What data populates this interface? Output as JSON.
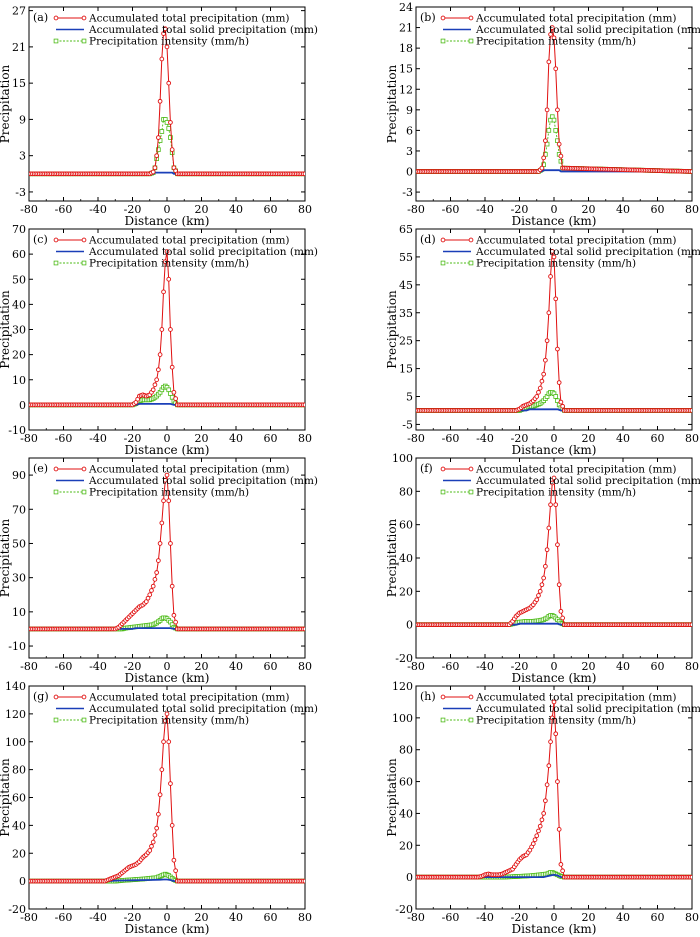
{
  "figure": {
    "xlabel": "Distance (km)",
    "ylabel": "Precipitation",
    "legend": {
      "total": "Accumulated total precipitation (mm)",
      "solid": "Accumulated total solid precipitation (mm)",
      "intensity": "Precipitation intensity (mm/h)"
    },
    "colors": {
      "total": "#e01010",
      "solid": "#1a3fb8",
      "intensity": "#4cbb17",
      "axis": "#000000"
    },
    "marker_icons": {
      "total": "circle-marker-icon",
      "solid": "line-only",
      "intensity": "square-marker-icon"
    }
  },
  "chart_data": [
    {
      "panel": "(a)",
      "type": "line",
      "xlim": [
        -80,
        80
      ],
      "xticks": [
        -80,
        -60,
        -40,
        -20,
        0,
        20,
        40,
        60,
        80
      ],
      "ylim": [
        -4.5,
        27.6
      ],
      "yticks": [
        -3,
        3,
        9,
        15,
        21,
        27
      ],
      "series": [
        {
          "name": "Accumulated total precipitation (mm)",
          "x": [
            -80,
            -10,
            -8,
            -7,
            -6,
            -5,
            -4,
            -3,
            -2,
            -1,
            0,
            1,
            2,
            3,
            4,
            6,
            80
          ],
          "values": [
            0,
            0,
            0.3,
            1,
            3,
            6,
            12,
            19,
            23.2,
            24,
            21,
            15,
            8.5,
            4,
            1,
            0,
            0
          ]
        },
        {
          "name": "Accumulated total solid precipitation (mm)",
          "x": [
            -80,
            -8,
            -7,
            3,
            4,
            80
          ],
          "values": [
            0,
            0,
            0.2,
            0.2,
            0,
            0
          ]
        },
        {
          "name": "Precipitation intensity (mm/h)",
          "x": [
            -80,
            -10,
            -8,
            -7,
            -6,
            -5,
            -4,
            -3,
            -2,
            -1,
            0,
            1,
            2,
            3,
            4,
            6,
            80
          ],
          "values": [
            0,
            0,
            0.2,
            1,
            2.5,
            4,
            5.5,
            7,
            9,
            9,
            8.5,
            7.5,
            6,
            3.5,
            1,
            0,
            0
          ]
        }
      ]
    },
    {
      "panel": "(b)",
      "type": "line",
      "xlim": [
        -80,
        80
      ],
      "xticks": [
        -80,
        -60,
        -40,
        -20,
        0,
        20,
        40,
        60,
        80
      ],
      "ylim": [
        -4.3,
        24
      ],
      "yticks": [
        -3,
        0,
        3,
        6,
        9,
        12,
        15,
        18,
        21,
        24
      ],
      "series": [
        {
          "name": "Accumulated total precipitation (mm)",
          "x": [
            -80,
            -9,
            -7,
            -6,
            -5,
            -4,
            -3,
            -2,
            -1,
            0,
            1,
            2,
            3,
            5,
            80
          ],
          "values": [
            0,
            0,
            0.5,
            2,
            4.5,
            9,
            16,
            20,
            21,
            19.5,
            15,
            9,
            4,
            0.5,
            0
          ]
        },
        {
          "name": "Accumulated total solid precipitation (mm)",
          "x": [
            -80,
            -7,
            -6,
            3,
            4,
            80
          ],
          "values": [
            0,
            0,
            0.2,
            0.2,
            0,
            0
          ]
        },
        {
          "name": "Precipitation intensity (mm/h)",
          "x": [
            -80,
            -9,
            -7,
            -6,
            -5,
            -4,
            -3,
            -2,
            -1,
            0,
            1,
            2,
            3,
            5,
            80
          ],
          "values": [
            0,
            0,
            0.3,
            1,
            2.5,
            4,
            6,
            7.5,
            8,
            7.5,
            6,
            4.5,
            2.5,
            0.5,
            0
          ]
        }
      ]
    },
    {
      "panel": "(c)",
      "type": "line",
      "xlim": [
        -80,
        80
      ],
      "xticks": [
        -80,
        -60,
        -40,
        -20,
        0,
        20,
        40,
        60,
        80
      ],
      "ylim": [
        -10,
        70
      ],
      "yticks": [
        -10,
        0,
        10,
        20,
        30,
        40,
        50,
        60,
        70
      ],
      "series": [
        {
          "name": "Accumulated total precipitation (mm)",
          "x": [
            -80,
            -20,
            -18,
            -16,
            -14,
            -12,
            -10,
            -8,
            -6,
            -5,
            -4,
            -3,
            -2,
            -1,
            0,
            1,
            2,
            3,
            4,
            6,
            80
          ],
          "values": [
            0,
            0,
            1,
            3.5,
            4,
            3.5,
            4,
            6,
            10,
            14,
            20,
            30,
            45,
            57,
            61,
            50,
            30,
            15,
            5,
            0,
            0
          ]
        },
        {
          "name": "Accumulated total solid precipitation (mm)",
          "x": [
            -80,
            -18,
            -16,
            2,
            4,
            80
          ],
          "values": [
            0,
            0,
            0.4,
            0.4,
            0,
            0
          ]
        },
        {
          "name": "Precipitation intensity (mm/h)",
          "x": [
            -80,
            -20,
            -18,
            -16,
            -14,
            -12,
            -10,
            -8,
            -6,
            -4,
            -3,
            -2,
            -1,
            0,
            1,
            2,
            3,
            4,
            6,
            80
          ],
          "values": [
            0,
            0,
            0.5,
            1.5,
            2,
            2,
            2,
            2.5,
            3.5,
            5,
            6,
            7,
            7.5,
            7,
            6,
            4.5,
            3,
            1.5,
            0,
            0
          ]
        }
      ]
    },
    {
      "panel": "(d)",
      "type": "line",
      "xlim": [
        -80,
        80
      ],
      "xticks": [
        -80,
        -60,
        -40,
        -20,
        0,
        20,
        40,
        60,
        80
      ],
      "ylim": [
        -7,
        65
      ],
      "yticks": [
        -5,
        5,
        15,
        25,
        35,
        45,
        55,
        65
      ],
      "series": [
        {
          "name": "Accumulated total precipitation (mm)",
          "x": [
            -80,
            -22,
            -20,
            -18,
            -16,
            -14,
            -12,
            -10,
            -8,
            -6,
            -5,
            -4,
            -3,
            -2,
            -1,
            0,
            1,
            2,
            3,
            4,
            6,
            80
          ],
          "values": [
            0,
            0,
            0.5,
            1.5,
            2,
            2.5,
            3.5,
            5,
            8,
            13,
            18,
            25,
            35,
            48,
            57,
            55,
            40,
            22,
            10,
            3,
            0,
            0
          ]
        },
        {
          "name": "Accumulated total solid precipitation (mm)",
          "x": [
            -80,
            -16,
            -14,
            2,
            4,
            80
          ],
          "values": [
            0,
            0,
            0.4,
            0.4,
            0,
            0
          ]
        },
        {
          "name": "Precipitation intensity (mm/h)",
          "x": [
            -80,
            -20,
            -18,
            -16,
            -14,
            -12,
            -10,
            -8,
            -6,
            -4,
            -3,
            -2,
            -1,
            0,
            1,
            2,
            3,
            4,
            6,
            80
          ],
          "values": [
            0,
            0,
            0.5,
            1,
            1.5,
            1.5,
            2,
            2.5,
            3.5,
            5,
            6,
            6.5,
            6.5,
            6,
            5,
            3.5,
            2,
            1,
            0,
            0
          ]
        }
      ]
    },
    {
      "panel": "(e)",
      "type": "line",
      "xlim": [
        -80,
        80
      ],
      "xticks": [
        -80,
        -60,
        -40,
        -20,
        0,
        20,
        40,
        60,
        80
      ],
      "ylim": [
        -17,
        100
      ],
      "yticks": [
        -10,
        10,
        30,
        50,
        70,
        90
      ],
      "series": [
        {
          "name": "Accumulated total precipitation (mm)",
          "x": [
            -80,
            -30,
            -28,
            -26,
            -24,
            -22,
            -20,
            -18,
            -16,
            -14,
            -12,
            -10,
            -8,
            -6,
            -5,
            -4,
            -3,
            -2,
            -1,
            0,
            1,
            2,
            3,
            4,
            6,
            80
          ],
          "values": [
            0,
            0,
            1,
            3,
            5,
            7,
            9,
            11,
            13,
            14,
            16,
            20,
            25,
            33,
            40,
            50,
            62,
            75,
            87,
            90,
            75,
            50,
            25,
            8,
            0,
            0
          ]
        },
        {
          "name": "Accumulated total solid precipitation (mm)",
          "x": [
            -80,
            -20,
            -18,
            2,
            4,
            80
          ],
          "values": [
            0,
            0,
            0.5,
            0.5,
            0,
            0
          ]
        },
        {
          "name": "Precipitation intensity (mm/h)",
          "x": [
            -80,
            -26,
            -24,
            -20,
            -16,
            -12,
            -8,
            -6,
            -4,
            -3,
            -2,
            -1,
            0,
            1,
            2,
            3,
            4,
            6,
            80
          ],
          "values": [
            0,
            0,
            0.5,
            1,
            1.5,
            2,
            2.5,
            3.5,
            5,
            6,
            6.5,
            6.5,
            6,
            5,
            4,
            2.5,
            1,
            0,
            0
          ]
        }
      ]
    },
    {
      "panel": "(f)",
      "type": "line",
      "xlim": [
        -80,
        80
      ],
      "xticks": [
        -80,
        -60,
        -40,
        -20,
        0,
        20,
        40,
        60,
        80
      ],
      "ylim": [
        -20,
        100
      ],
      "yticks": [
        -20,
        0,
        20,
        40,
        60,
        80,
        100
      ],
      "series": [
        {
          "name": "Accumulated total precipitation (mm)",
          "x": [
            -80,
            -26,
            -24,
            -22,
            -20,
            -18,
            -16,
            -14,
            -12,
            -10,
            -8,
            -6,
            -5,
            -4,
            -3,
            -2,
            -1,
            0,
            1,
            2,
            3,
            4,
            6,
            80
          ],
          "values": [
            0,
            0,
            2,
            5,
            7,
            8,
            9,
            10,
            12,
            15,
            20,
            28,
            35,
            45,
            58,
            72,
            85,
            88,
            72,
            48,
            24,
            8,
            0,
            0
          ]
        },
        {
          "name": "Accumulated total solid precipitation (mm)",
          "x": [
            -80,
            -22,
            -20,
            2,
            4,
            80
          ],
          "values": [
            0,
            0,
            0.6,
            0.6,
            0,
            0
          ]
        },
        {
          "name": "Precipitation intensity (mm/h)",
          "x": [
            -80,
            -26,
            -24,
            -20,
            -16,
            -12,
            -8,
            -6,
            -4,
            -3,
            -2,
            -1,
            0,
            1,
            2,
            3,
            4,
            6,
            80
          ],
          "values": [
            0,
            0,
            0.5,
            1.5,
            2,
            2,
            2.5,
            3,
            4,
            5,
            5.5,
            5.5,
            5,
            4,
            3,
            2,
            1,
            0,
            0
          ]
        }
      ]
    },
    {
      "panel": "(g)",
      "type": "line",
      "xlim": [
        -80,
        80
      ],
      "xticks": [
        -80,
        -60,
        -40,
        -20,
        0,
        20,
        40,
        60,
        80
      ],
      "ylim": [
        -20,
        140
      ],
      "yticks": [
        -20,
        0,
        20,
        40,
        60,
        80,
        100,
        120,
        140
      ],
      "series": [
        {
          "name": "Accumulated total precipitation (mm)",
          "x": [
            -80,
            -36,
            -34,
            -32,
            -30,
            -28,
            -26,
            -24,
            -22,
            -20,
            -18,
            -16,
            -14,
            -12,
            -10,
            -8,
            -6,
            -5,
            -4,
            -3,
            -2,
            -1,
            0,
            1,
            2,
            3,
            4,
            6,
            80
          ],
          "values": [
            0,
            0,
            1,
            2,
            3,
            4,
            6,
            8,
            10,
            11,
            12,
            14,
            17,
            19,
            22,
            28,
            38,
            48,
            62,
            80,
            100,
            115,
            120,
            100,
            70,
            40,
            15,
            0,
            0
          ]
        },
        {
          "name": "Accumulated total solid precipitation (mm)",
          "x": [
            -80,
            -34,
            -32,
            -30,
            -20,
            -10,
            -4,
            -2,
            0,
            2,
            4,
            80
          ],
          "values": [
            0,
            0,
            0.2,
            0.4,
            0.6,
            0.8,
            1,
            1.2,
            1.2,
            0.8,
            0,
            0
          ]
        },
        {
          "name": "Precipitation intensity (mm/h)",
          "x": [
            -80,
            -30,
            -26,
            -20,
            -14,
            -10,
            -6,
            -4,
            -3,
            -2,
            -1,
            0,
            1,
            2,
            3,
            4,
            6,
            80
          ],
          "values": [
            0,
            0,
            0.5,
            1,
            1.5,
            2,
            2.5,
            3.5,
            4,
            4.5,
            5,
            4.5,
            4,
            3,
            2,
            1,
            0,
            0
          ]
        }
      ]
    },
    {
      "panel": "(h)",
      "type": "line",
      "xlim": [
        -80,
        80
      ],
      "xticks": [
        -80,
        -60,
        -40,
        -20,
        0,
        20,
        40,
        60,
        80
      ],
      "ylim": [
        -20,
        120
      ],
      "yticks": [
        -20,
        0,
        20,
        40,
        60,
        80,
        100,
        120
      ],
      "series": [
        {
          "name": "Accumulated total precipitation (mm)",
          "x": [
            -80,
            -44,
            -42,
            -40,
            -38,
            -36,
            -34,
            -32,
            -30,
            -28,
            -26,
            -24,
            -22,
            -20,
            -18,
            -16,
            -14,
            -12,
            -10,
            -8,
            -6,
            -5,
            -4,
            -3,
            -2,
            -1,
            0,
            1,
            2,
            3,
            4,
            6,
            80
          ],
          "values": [
            0,
            0,
            0.5,
            1.5,
            2,
            1.5,
            1.5,
            1.5,
            2,
            3,
            4,
            5,
            8,
            11,
            13,
            14,
            17,
            21,
            26,
            32,
            40,
            48,
            58,
            70,
            85,
            100,
            110,
            90,
            60,
            30,
            8,
            0,
            0
          ]
        },
        {
          "name": "Accumulated total solid precipitation (mm)",
          "x": [
            -80,
            -6,
            -4,
            -2,
            0,
            2,
            4,
            80
          ],
          "values": [
            0,
            0,
            0.5,
            1,
            1.5,
            1,
            0,
            0
          ]
        },
        {
          "name": "Precipitation intensity (mm/h)",
          "x": [
            -80,
            -30,
            -24,
            -18,
            -12,
            -8,
            -4,
            -3,
            -2,
            -1,
            0,
            1,
            2,
            3,
            4,
            6,
            80
          ],
          "values": [
            0,
            0,
            0.3,
            0.6,
            1,
            1.5,
            2,
            2.5,
            3,
            3,
            2.5,
            2,
            1.5,
            1,
            0.5,
            0,
            0
          ]
        }
      ]
    }
  ]
}
